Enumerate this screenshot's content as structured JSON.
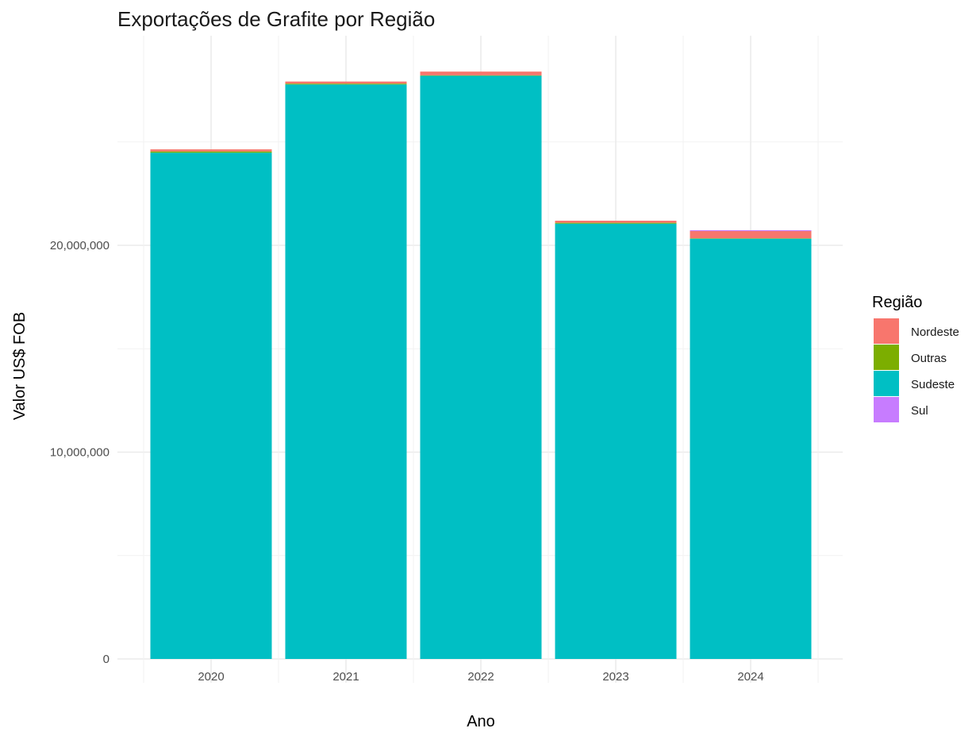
{
  "chart_data": {
    "type": "bar",
    "stacked": true,
    "title": "Exportações de Grafite por Região",
    "xlabel": "Ano",
    "ylabel": "Valor US$ FOB",
    "categories": [
      "2020",
      "2021",
      "2022",
      "2023",
      "2024"
    ],
    "series": [
      {
        "name": "Sudeste",
        "color": "#00BFC4",
        "values": [
          24480000,
          27780000,
          28200000,
          21050000,
          20320000
        ]
      },
      {
        "name": "Outras",
        "color": "#7CAE00",
        "values": [
          60000,
          40000,
          20000,
          40000,
          20000
        ]
      },
      {
        "name": "Nordeste",
        "color": "#F8766D",
        "values": [
          100000,
          100000,
          180000,
          100000,
          350000
        ]
      },
      {
        "name": "Sul",
        "color": "#C77CFF",
        "values": [
          0,
          0,
          0,
          0,
          40000
        ]
      }
    ],
    "ylim": [
      0,
      31000000
    ],
    "y_ticks": [
      0,
      10000000,
      20000000
    ],
    "y_tick_labels": [
      "0",
      "10,000,000",
      "20,000,000"
    ],
    "y_minor_ticks": [
      5000000,
      15000000,
      25000000
    ],
    "grid": true,
    "legend": {
      "title": "Região",
      "position": "right",
      "entries": [
        {
          "label": "Nordeste",
          "color": "#F8766D"
        },
        {
          "label": "Outras",
          "color": "#7CAE00"
        },
        {
          "label": "Sudeste",
          "color": "#00BFC4"
        },
        {
          "label": "Sul",
          "color": "#C77CFF"
        }
      ]
    }
  }
}
